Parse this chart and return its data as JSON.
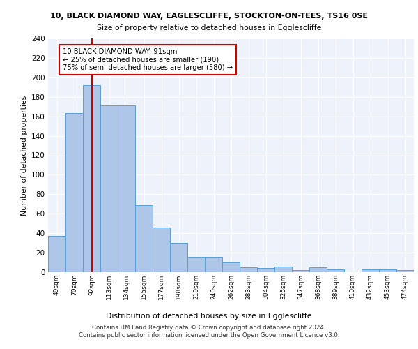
{
  "title1": "10, BLACK DIAMOND WAY, EAGLESCLIFFE, STOCKTON-ON-TEES, TS16 0SE",
  "title2": "Size of property relative to detached houses in Egglescliffe",
  "xlabel": "Distribution of detached houses by size in Egglescliffe",
  "ylabel": "Number of detached properties",
  "bar_labels": [
    "49sqm",
    "70sqm",
    "92sqm",
    "113sqm",
    "134sqm",
    "155sqm",
    "177sqm",
    "198sqm",
    "219sqm",
    "240sqm",
    "262sqm",
    "283sqm",
    "304sqm",
    "325sqm",
    "347sqm",
    "368sqm",
    "389sqm",
    "410sqm",
    "432sqm",
    "453sqm",
    "474sqm"
  ],
  "bar_values": [
    37,
    163,
    192,
    171,
    171,
    69,
    46,
    30,
    16,
    16,
    10,
    5,
    4,
    6,
    2,
    5,
    3,
    0,
    3,
    3,
    2
  ],
  "bar_color": "#aec6e8",
  "bar_edge_color": "#5a9fd4",
  "background_color": "#eef3fb",
  "grid_color": "#ffffff",
  "red_line_x": 2,
  "annotation_text": "10 BLACK DIAMOND WAY: 91sqm\n← 25% of detached houses are smaller (190)\n75% of semi-detached houses are larger (580) →",
  "annotation_box_color": "#ffffff",
  "annotation_box_edge": "#cc0000",
  "red_line_color": "#cc0000",
  "ylim": [
    0,
    240
  ],
  "yticks": [
    0,
    20,
    40,
    60,
    80,
    100,
    120,
    140,
    160,
    180,
    200,
    220,
    240
  ],
  "footer1": "Contains HM Land Registry data © Crown copyright and database right 2024.",
  "footer2": "Contains public sector information licensed under the Open Government Licence v3.0."
}
